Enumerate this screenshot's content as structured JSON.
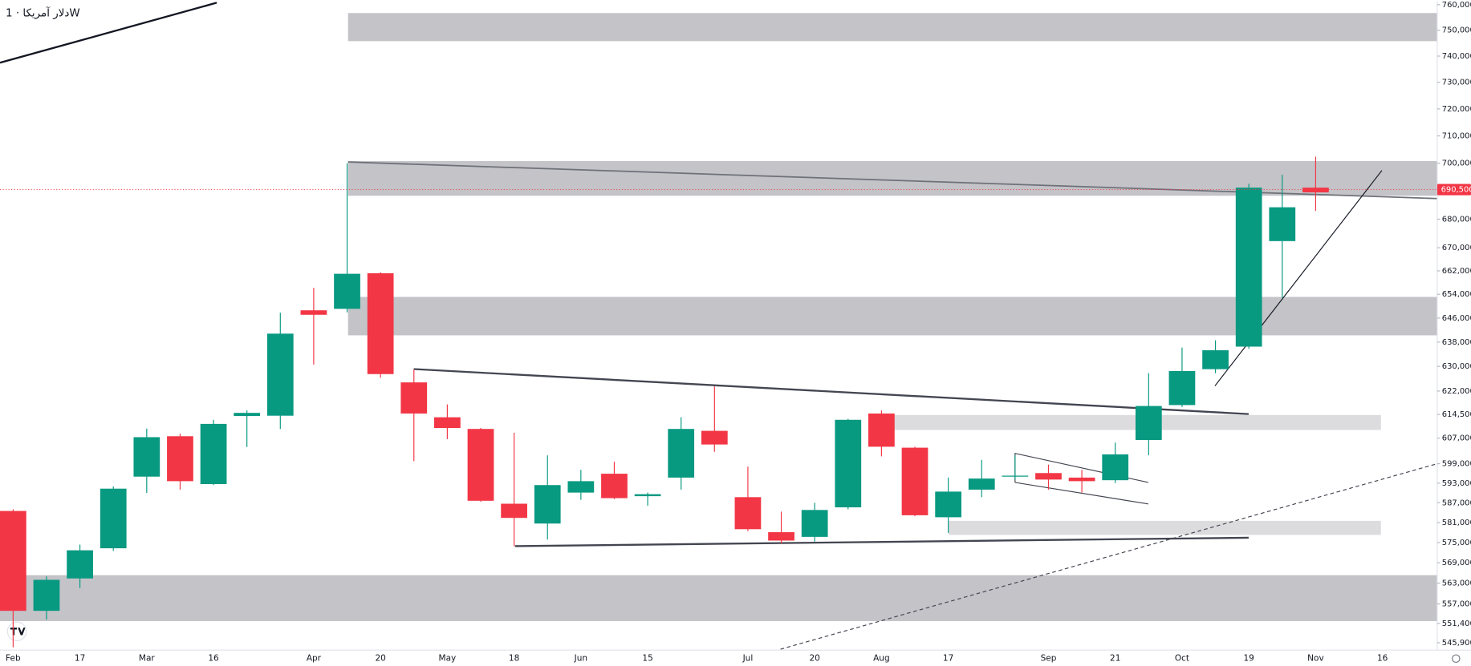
{
  "chart_data": {
    "type": "candlestick",
    "title": "دلار آمریکا · 1W",
    "log_scale": true,
    "grid": false,
    "up_color": "#089981",
    "down_color": "#f23645",
    "categories": [
      "Feb",
      null,
      "17",
      null,
      "Mar",
      null,
      "16",
      null,
      null,
      "Apr",
      null,
      "20",
      null,
      "May",
      null,
      "18",
      null,
      "Jun",
      null,
      "15",
      null,
      null,
      "Jul",
      null,
      "20",
      null,
      "Aug",
      null,
      "17",
      null,
      null,
      "Sep",
      null,
      "21",
      null,
      "Oct",
      null,
      "19",
      null,
      "Nov",
      null,
      "16"
    ],
    "open": [
      584500,
      555000,
      564400,
      573300,
      595000,
      607600,
      592700,
      614000,
      614100,
      648600,
      649100,
      661200,
      624800,
      613600,
      609900,
      586700,
      580700,
      590100,
      595900,
      589000,
      594700,
      609300,
      588700,
      578100,
      576700,
      585600,
      614800,
      604000,
      582600,
      591000,
      595000,
      596100,
      594700,
      593900,
      606400,
      617500,
      629100,
      636500,
      672300,
      691200,
      null,
      null
    ],
    "high": [
      585000,
      565000,
      574400,
      592000,
      610000,
      608400,
      612800,
      615800,
      647800,
      656200,
      700000,
      661500,
      629000,
      617700,
      610200,
      608700,
      601600,
      597100,
      599600,
      590100,
      613600,
      623500,
      598100,
      584300,
      587000,
      613100,
      615800,
      604300,
      594700,
      600200,
      601600,
      598700,
      597100,
      605600,
      627800,
      636200,
      638600,
      692600,
      695800,
      702400,
      null,
      null
    ],
    "low": [
      544600,
      552500,
      561600,
      572500,
      590000,
      591000,
      592400,
      604200,
      609900,
      630600,
      647900,
      626300,
      599800,
      606700,
      587300,
      573900,
      575900,
      587900,
      588100,
      586100,
      591000,
      602700,
      578400,
      574700,
      575300,
      585000,
      601300,
      582900,
      577900,
      588700,
      594100,
      591000,
      590100,
      593000,
      601600,
      616900,
      627800,
      635800,
      652800,
      682900,
      null,
      null
    ],
    "close": [
      555000,
      564000,
      572700,
      591300,
      607300,
      593600,
      611500,
      615000,
      640800,
      647100,
      661000,
      627500,
      614800,
      610200,
      587600,
      582400,
      592400,
      593600,
      588400,
      589600,
      609900,
      605000,
      579000,
      575600,
      584800,
      612800,
      604300,
      583200,
      590400,
      594400,
      595300,
      594100,
      593600,
      601900,
      617200,
      628500,
      635300,
      691200,
      684200,
      689500,
      null,
      null
    ],
    "last_price": {
      "value": 690500,
      "label": "690,500"
    },
    "ylim": [
      543800,
      761500
    ],
    "yticks": [
      {
        "value": 760000,
        "label": "760,000"
      },
      {
        "value": 750000,
        "label": "750,000"
      },
      {
        "value": 740000,
        "label": "740,000"
      },
      {
        "value": 730000,
        "label": "730,000"
      },
      {
        "value": 720000,
        "label": "720,000"
      },
      {
        "value": 710000,
        "label": "710,000"
      },
      {
        "value": 700000,
        "label": "700,000"
      },
      {
        "value": 680000,
        "label": "680,000"
      },
      {
        "value": 670000,
        "label": "670,000"
      },
      {
        "value": 662000,
        "label": "662,000"
      },
      {
        "value": 654000,
        "label": "654,000"
      },
      {
        "value": 646000,
        "label": "646,000"
      },
      {
        "value": 638000,
        "label": "638,000"
      },
      {
        "value": 630000,
        "label": "630,000"
      },
      {
        "value": 622000,
        "label": "622,000"
      },
      {
        "value": 614500,
        "label": "614,500"
      },
      {
        "value": 607000,
        "label": "607,000"
      },
      {
        "value": 599000,
        "label": "599,000"
      },
      {
        "value": 593000,
        "label": "593,000"
      },
      {
        "value": 587000,
        "label": "587,000"
      },
      {
        "value": 581000,
        "label": "581,000"
      },
      {
        "value": 575000,
        "label": "575,000"
      },
      {
        "value": 569000,
        "label": "569,000"
      },
      {
        "value": 563000,
        "label": "563,000"
      },
      {
        "value": 557000,
        "label": "557,000"
      },
      {
        "value": 551400,
        "label": "551,400"
      },
      {
        "value": 545900,
        "label": "545,900"
      }
    ]
  }
}
